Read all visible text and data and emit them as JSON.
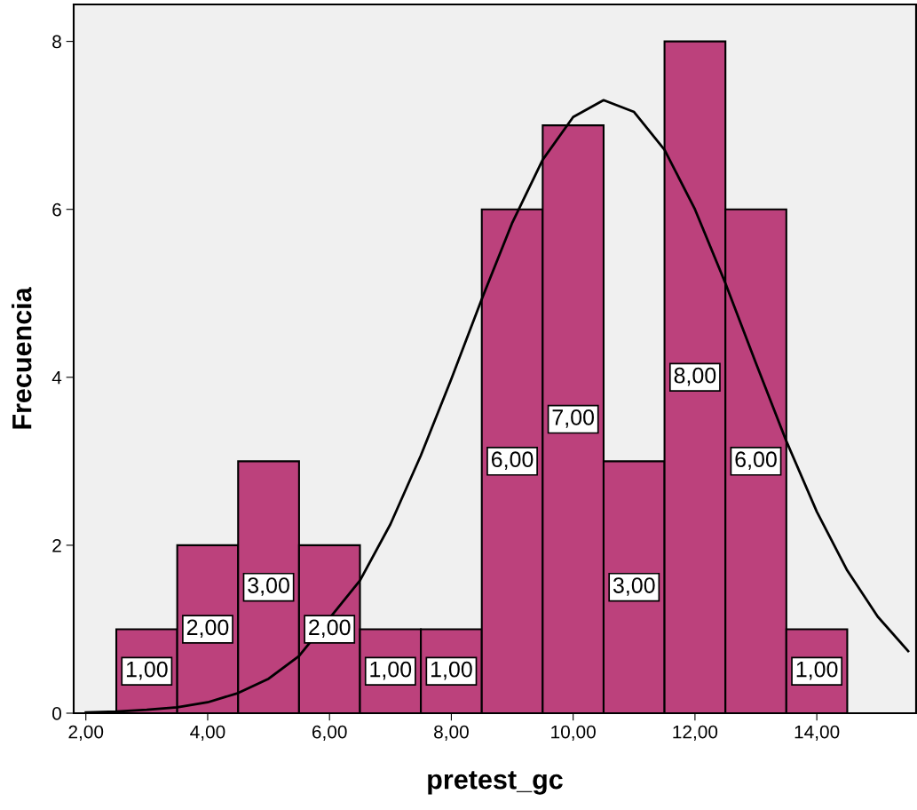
{
  "chart_data": {
    "type": "histogram",
    "xlabel": "pretest_gc",
    "ylabel": "Frecuencia",
    "bins": [
      2.5,
      3.5,
      4.5,
      5.5,
      6.5,
      7.5,
      8.5,
      9.5,
      10.5,
      11.5,
      12.5,
      13.5,
      14.5
    ],
    "values": [
      1,
      2,
      3,
      2,
      1,
      1,
      6,
      7,
      3,
      8,
      6,
      1
    ],
    "value_labels": [
      "1,00",
      "2,00",
      "3,00",
      "2,00",
      "1,00",
      "1,00",
      "6,00",
      "7,00",
      "3,00",
      "8,00",
      "6,00",
      "1,00"
    ],
    "color": "#bc417c",
    "series": [
      {
        "type": "line",
        "color": "#000000",
        "x": [
          2,
          2.5,
          3,
          3.5,
          4,
          4.5,
          5,
          5.5,
          6.5,
          7,
          7.5,
          8,
          8.5,
          9,
          9.5,
          10,
          10.5,
          11,
          11.5,
          12,
          12.5,
          13,
          13.5,
          14,
          14.5,
          15,
          15.5
        ],
        "values": [
          0.01,
          0.02,
          0.04,
          0.07,
          0.13,
          0.24,
          0.41,
          0.68,
          1.58,
          2.25,
          3.07,
          3.98,
          4.93,
          5.84,
          6.59,
          7.1,
          7.3,
          7.16,
          6.71,
          6.0,
          5.12,
          4.17,
          3.24,
          2.4,
          1.7,
          1.15,
          0.74
        ]
      }
    ],
    "xlim": [
      1.8,
      15.63
    ],
    "ylim": [
      0,
      8.44
    ],
    "xticks": [
      {
        "value": 2,
        "label": "2,00"
      },
      {
        "value": 4,
        "label": "4,00"
      },
      {
        "value": 6,
        "label": "6,00"
      },
      {
        "value": 8,
        "label": "8,00"
      },
      {
        "value": 10,
        "label": "10,00"
      },
      {
        "value": 12,
        "label": "12,00"
      },
      {
        "value": 14,
        "label": "14,00"
      }
    ],
    "yticks": [
      0,
      2,
      4,
      6,
      8
    ],
    "grid": false
  }
}
